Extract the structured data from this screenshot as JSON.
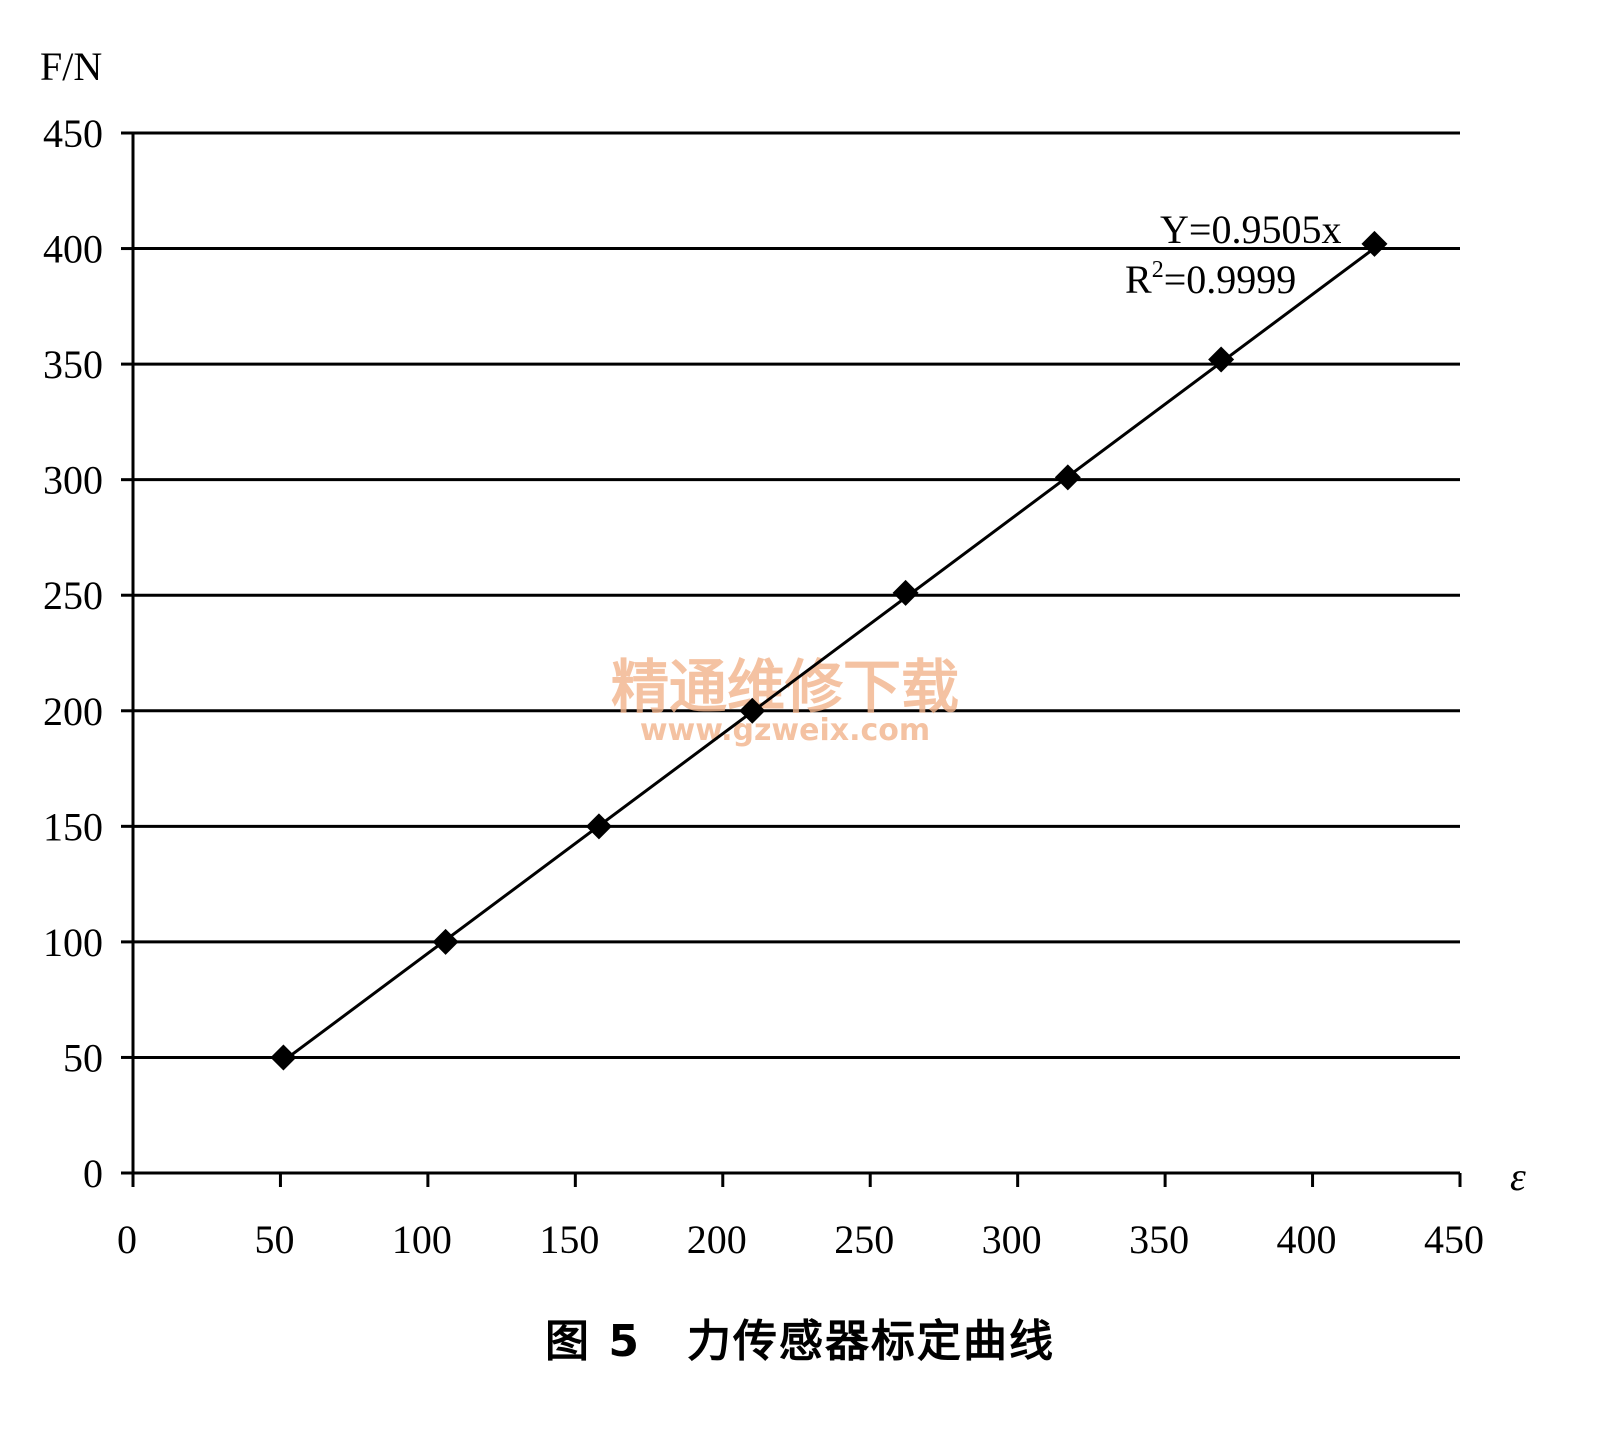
{
  "chart_data": {
    "type": "scatter",
    "y_unit": "F/N",
    "x_unit": "ε",
    "xlim": [
      0,
      450
    ],
    "ylim": [
      0,
      450
    ],
    "x_ticks": [
      "0",
      "50",
      "100",
      "150",
      "200",
      "250",
      "300",
      "350",
      "400",
      "450"
    ],
    "y_ticks": [
      "0",
      "50",
      "100",
      "150",
      "200",
      "250",
      "300",
      "350",
      "400",
      "450"
    ],
    "grid": "horizontal",
    "marker": "diamond",
    "points": [
      {
        "x": 51,
        "y": 50
      },
      {
        "x": 106,
        "y": 100
      },
      {
        "x": 158,
        "y": 150
      },
      {
        "x": 210,
        "y": 200
      },
      {
        "x": 262,
        "y": 251
      },
      {
        "x": 317,
        "y": 301
      },
      {
        "x": 369,
        "y": 352
      },
      {
        "x": 421,
        "y": 402
      }
    ],
    "trendline": {
      "slope": 0.9505,
      "from_x": 51,
      "to_x": 421
    },
    "annotations": {
      "equation": "Y=0.9505x",
      "r_squared_prefix": "R",
      "r_squared_sup": "2",
      "r_squared_value": "=0.9999"
    }
  },
  "caption": "图 5　力传感器标定曲线",
  "watermark": {
    "line1": "精通维修下载",
    "line2": "www.gzweix.com"
  }
}
